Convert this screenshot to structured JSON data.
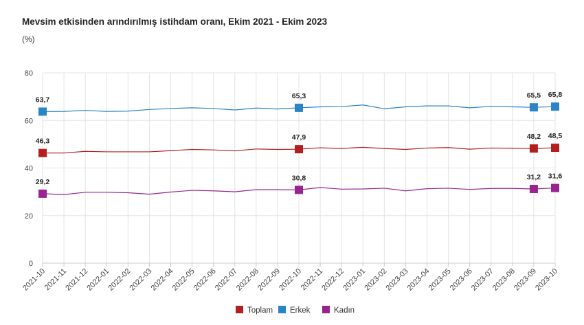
{
  "chart_data": {
    "type": "line",
    "title": "Mevsim etkisinden arındırılmış istihdam oranı, Ekim 2021 - Ekim 2023",
    "ylabel": "(%)",
    "xlabel": "",
    "ylim": [
      0,
      80
    ],
    "yticks": [
      0,
      20,
      40,
      60,
      80
    ],
    "grid": true,
    "legend_position": "bottom",
    "x": [
      "2021-10",
      "2021-11",
      "2021-12",
      "2022-01",
      "2022-02",
      "2022-03",
      "2022-04",
      "2022-05",
      "2022-06",
      "2022-07",
      "2022-08",
      "2022-09",
      "2022-10",
      "2022-11",
      "2022-12",
      "2023-01",
      "2023-02",
      "2023-03",
      "2023-04",
      "2023-05",
      "2023-06",
      "2023-07",
      "2023-08",
      "2023-09",
      "2023-10"
    ],
    "series": [
      {
        "name": "Toplam",
        "color": "#b31f1f",
        "values": [
          46.3,
          46.3,
          47.0,
          46.8,
          46.8,
          46.8,
          47.3,
          47.8,
          47.6,
          47.2,
          48.0,
          47.8,
          47.9,
          48.5,
          48.2,
          48.7,
          48.2,
          47.8,
          48.4,
          48.6,
          47.9,
          48.4,
          48.3,
          48.2,
          48.5
        ],
        "labels": {
          "0": "46,3",
          "12": "47,9",
          "23": "48,2",
          "24": "48,5"
        }
      },
      {
        "name": "Erkek",
        "color": "#2a84c6",
        "values": [
          63.7,
          63.8,
          64.2,
          63.8,
          63.9,
          64.6,
          65.0,
          65.3,
          65.0,
          64.4,
          65.2,
          64.8,
          65.3,
          65.7,
          65.8,
          66.5,
          64.9,
          65.7,
          66.1,
          66.1,
          65.3,
          65.9,
          65.7,
          65.5,
          65.8
        ],
        "labels": {
          "0": "63,7",
          "12": "65,3",
          "23": "65,5",
          "24": "65,8"
        }
      },
      {
        "name": "Kadın",
        "color": "#992390",
        "values": [
          29.2,
          28.8,
          29.8,
          29.8,
          29.6,
          29.0,
          29.9,
          30.6,
          30.4,
          30.0,
          30.9,
          30.9,
          30.8,
          31.8,
          31.1,
          31.2,
          31.5,
          30.4,
          31.3,
          31.5,
          31.0,
          31.4,
          31.4,
          31.2,
          31.6
        ],
        "labels": {
          "0": "29,2",
          "12": "30,8",
          "23": "31,2",
          "24": "31,6"
        }
      }
    ]
  }
}
